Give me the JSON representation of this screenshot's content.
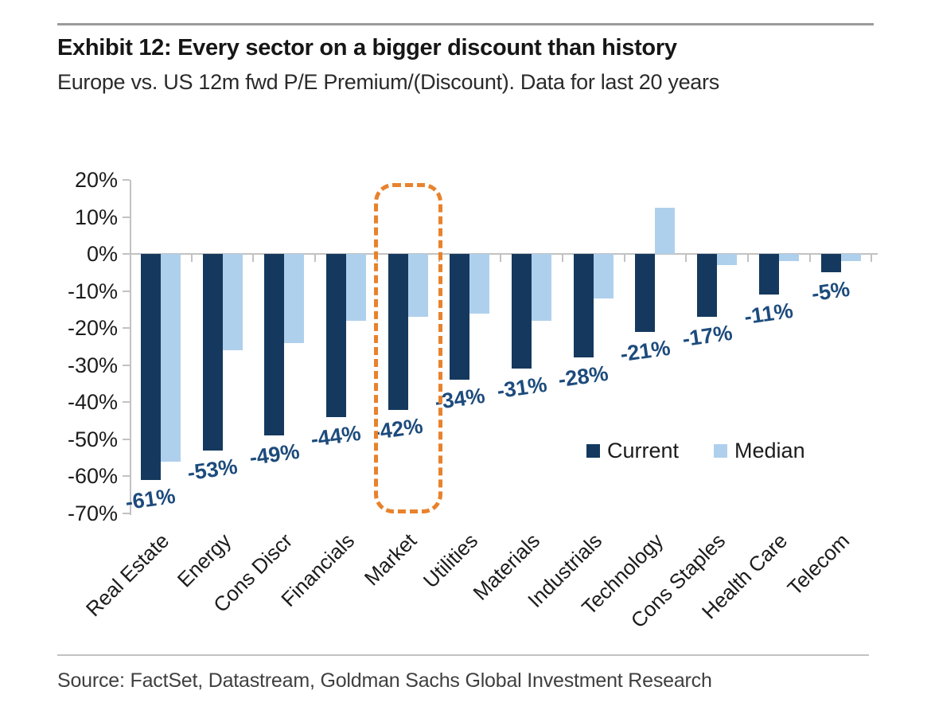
{
  "header": {},
  "footer": {
    "source": "Source: FactSet, Datastream, Goldman Sachs Global Investment Research"
  },
  "colors": {
    "current": "#15395E",
    "median": "#AFD0EC",
    "value_label": "#1D4B7C",
    "highlight": "#E8822C",
    "axis": "#C2C2C2"
  },
  "chart_data": {
    "type": "bar",
    "title": "Exhibit 12: Every sector on a bigger discount than history",
    "subtitle": "Europe vs. US 12m fwd P/E Premium/(Discount). Data for last 20 years",
    "categories": [
      "Real Estate",
      "Energy",
      "Cons Discr",
      "Financials",
      "Market",
      "Utilities",
      "Materials",
      "Industrials",
      "Technology",
      "Cons Staples",
      "Health Care",
      "Telecom"
    ],
    "series": [
      {
        "name": "Current",
        "values": [
          -61,
          -53,
          -49,
          -44,
          -42,
          -34,
          -31,
          -28,
          -21,
          -17,
          -11,
          -5
        ],
        "data_labels": [
          "-61%",
          "-53%",
          "-49%",
          "-44%",
          "-42%",
          "-34%",
          "-31%",
          "-28%",
          "-21%",
          "-17%",
          "-11%",
          "-5%"
        ]
      },
      {
        "name": "Median",
        "values": [
          -56,
          -26,
          -24,
          -18,
          -17,
          -16,
          -18,
          -12,
          12.5,
          -3,
          -2,
          -2
        ]
      }
    ],
    "xlabel": "",
    "ylabel": "",
    "ylim": [
      -70,
      20
    ],
    "y_tick_labels": [
      "20%",
      "10%",
      "0%",
      "-10%",
      "-20%",
      "-30%",
      "-40%",
      "-50%",
      "-60%",
      "-70%"
    ],
    "grid": false,
    "legend_position": "inside-right",
    "highlighted_category": "Market"
  }
}
